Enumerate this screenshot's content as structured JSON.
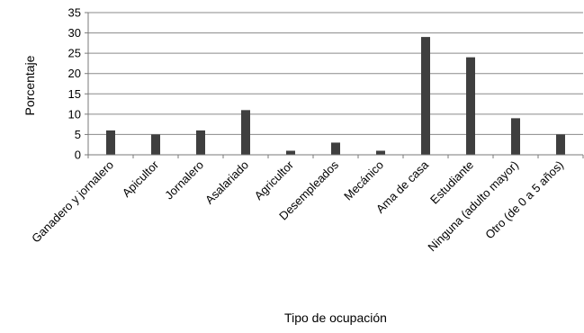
{
  "chart_data": {
    "type": "bar",
    "title": "",
    "xlabel": "Tipo de ocupación",
    "ylabel": "Porcentaje",
    "ylim": [
      0,
      35
    ],
    "yticks": [
      0,
      5,
      10,
      15,
      20,
      25,
      30,
      35
    ],
    "grid": true,
    "legend": "none",
    "bar_color": "#3f3f3f",
    "categories": [
      "Ganadero y jornalero",
      "Apicultor",
      "Jornalero",
      "Asalariado",
      "Agricultor",
      "Desempleados",
      "Mecánico",
      "Ama de casa",
      "Estudiante",
      "Ninguna (adulto mayor)",
      "Otro (de 0 a 5 años)"
    ],
    "values": [
      6,
      5,
      6,
      11,
      1,
      3,
      1,
      29,
      24,
      9,
      5
    ]
  }
}
